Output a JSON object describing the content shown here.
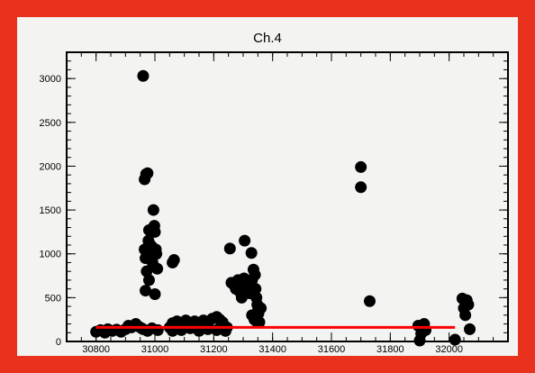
{
  "colors": {
    "frame": "#e8321e",
    "background": "#f3f3f1",
    "points": "#000000",
    "fit_line": "#ff0000"
  },
  "chart_data": {
    "type": "scatter",
    "title": "Ch.4",
    "xlabel": "",
    "ylabel": "",
    "xlim": [
      30700,
      32200
    ],
    "ylim": [
      0,
      3300
    ],
    "x_ticks": [
      30800,
      31000,
      31200,
      31400,
      31600,
      31800,
      32000
    ],
    "y_ticks": [
      0,
      500,
      1000,
      1500,
      2000,
      2500,
      3000
    ],
    "grid": false,
    "legend": "none",
    "series": [
      {
        "points": [
          [
            30800,
            110
          ],
          [
            30815,
            130
          ],
          [
            30830,
            100
          ],
          [
            30840,
            140
          ],
          [
            30855,
            120
          ],
          [
            30870,
            135
          ],
          [
            30885,
            110
          ],
          [
            30900,
            140
          ],
          [
            30910,
            180
          ],
          [
            30920,
            160
          ],
          [
            30935,
            200
          ],
          [
            30945,
            170
          ],
          [
            30955,
            150
          ],
          [
            30960,
            3030
          ],
          [
            30965,
            1850
          ],
          [
            30970,
            1910
          ],
          [
            30975,
            1920
          ],
          [
            30965,
            1050
          ],
          [
            30968,
            950
          ],
          [
            30972,
            800
          ],
          [
            30975,
            1000
          ],
          [
            30978,
            1150
          ],
          [
            30980,
            1270
          ],
          [
            30985,
            1100
          ],
          [
            30990,
            1080
          ],
          [
            30992,
            900
          ],
          [
            30995,
            1500
          ],
          [
            30998,
            1320
          ],
          [
            31000,
            1250
          ],
          [
            31003,
            1050
          ],
          [
            31005,
            1000
          ],
          [
            31008,
            830
          ],
          [
            30968,
            580
          ],
          [
            31000,
            540
          ],
          [
            30980,
            700
          ],
          [
            30960,
            140
          ],
          [
            30975,
            120
          ],
          [
            30990,
            150
          ],
          [
            31010,
            130
          ],
          [
            31060,
            900
          ],
          [
            31065,
            930
          ],
          [
            31050,
            160
          ],
          [
            31060,
            210
          ],
          [
            31075,
            230
          ],
          [
            31090,
            200
          ],
          [
            31105,
            240
          ],
          [
            31120,
            180
          ],
          [
            31135,
            230
          ],
          [
            31150,
            200
          ],
          [
            31165,
            240
          ],
          [
            31180,
            170
          ],
          [
            31195,
            260
          ],
          [
            31210,
            280
          ],
          [
            31220,
            250
          ],
          [
            31230,
            220
          ],
          [
            31245,
            160
          ],
          [
            31060,
            120
          ],
          [
            31090,
            130
          ],
          [
            31120,
            150
          ],
          [
            31150,
            120
          ],
          [
            31180,
            140
          ],
          [
            31210,
            130
          ],
          [
            31240,
            120
          ],
          [
            31255,
            1060
          ],
          [
            31260,
            670
          ],
          [
            31270,
            640
          ],
          [
            31275,
            600
          ],
          [
            31282,
            700
          ],
          [
            31290,
            560
          ],
          [
            31295,
            500
          ],
          [
            31300,
            680
          ],
          [
            31303,
            720
          ],
          [
            31305,
            1150
          ],
          [
            31310,
            640
          ],
          [
            31315,
            600
          ],
          [
            31318,
            650
          ],
          [
            31322,
            550
          ],
          [
            31328,
            1010
          ],
          [
            31330,
            700
          ],
          [
            31335,
            820
          ],
          [
            31340,
            760
          ],
          [
            31342,
            600
          ],
          [
            31345,
            500
          ],
          [
            31348,
            420
          ],
          [
            31350,
            350
          ],
          [
            31352,
            320
          ],
          [
            31345,
            230
          ],
          [
            31338,
            250
          ],
          [
            31330,
            300
          ],
          [
            31355,
            220
          ],
          [
            31345,
            260
          ],
          [
            31360,
            380
          ],
          [
            31700,
            1990
          ],
          [
            31700,
            1760
          ],
          [
            31730,
            460
          ],
          [
            31895,
            180
          ],
          [
            31900,
            10
          ],
          [
            31905,
            90
          ],
          [
            31915,
            200
          ],
          [
            31920,
            130
          ],
          [
            32020,
            20
          ],
          [
            32045,
            490
          ],
          [
            32050,
            380
          ],
          [
            32055,
            300
          ],
          [
            32060,
            470
          ],
          [
            32065,
            420
          ],
          [
            32070,
            140
          ]
        ]
      },
      {
        "type": "line",
        "x": [
          30800,
          32020
        ],
        "y": [
          160,
          160
        ]
      }
    ]
  }
}
